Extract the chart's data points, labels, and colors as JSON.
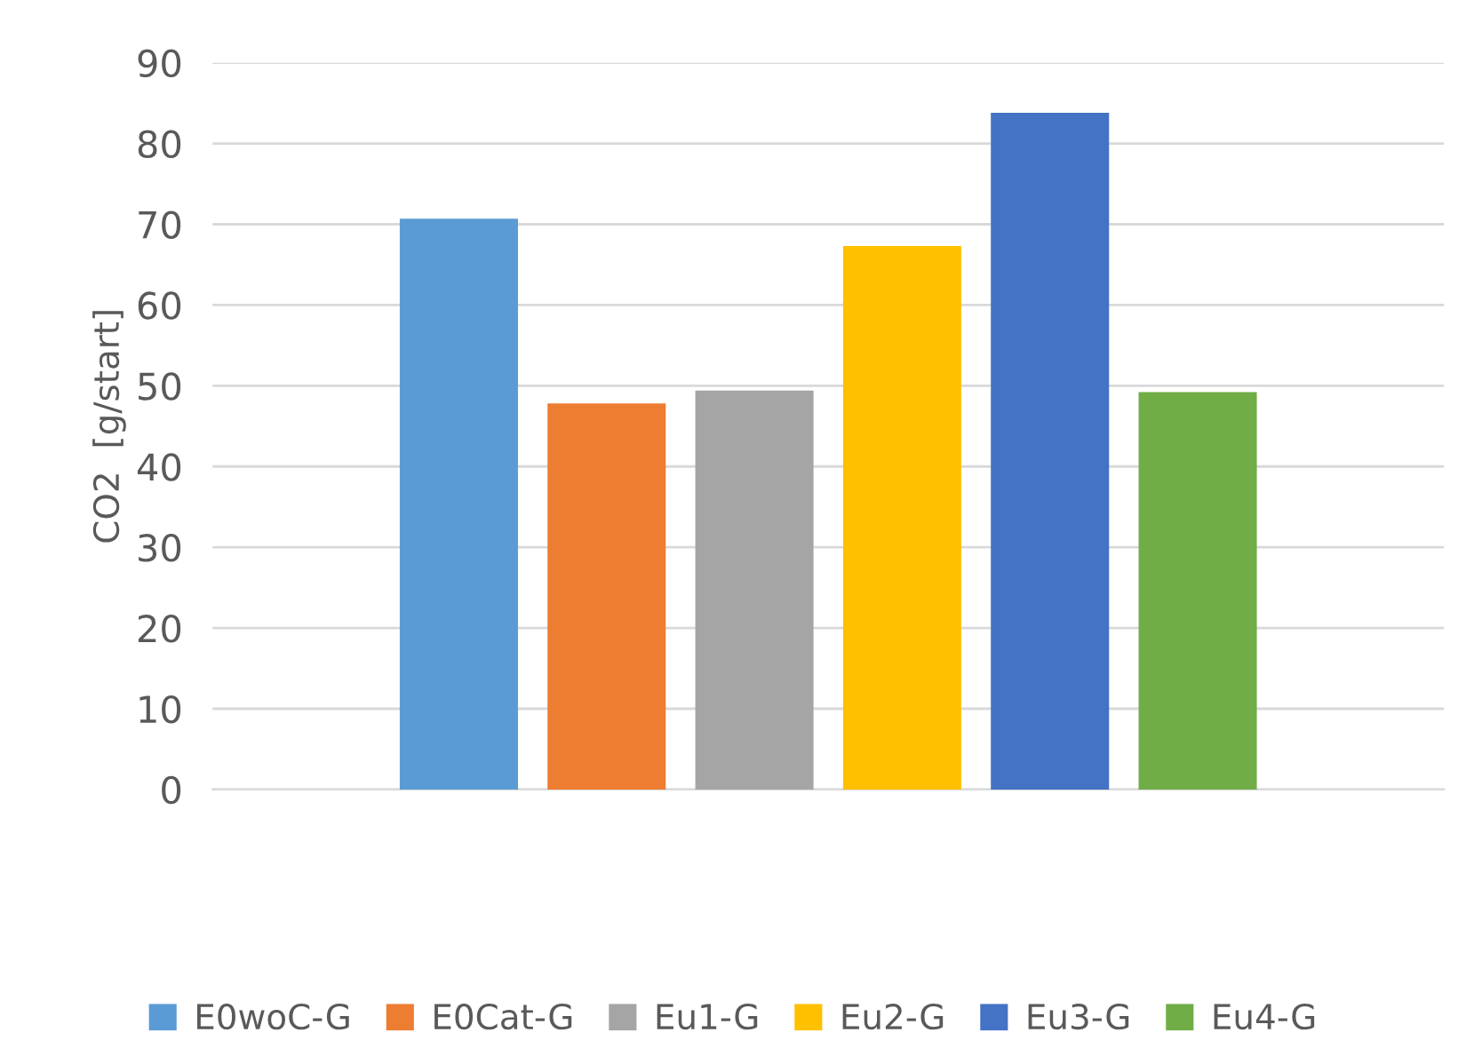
{
  "chart_data": {
    "type": "bar",
    "ylabel": "CO2  [g/start]",
    "categories": [
      null
    ],
    "series": [
      {
        "name": "E0woC-G",
        "color": "#5b9bd5",
        "values": [
          70.7
        ]
      },
      {
        "name": "E0Cat-G",
        "color": "#ed7d31",
        "values": [
          47.8
        ]
      },
      {
        "name": "Eu1-G",
        "color": "#a5a5a5",
        "values": [
          49.4
        ]
      },
      {
        "name": "Eu2-G",
        "color": "#ffc000",
        "values": [
          67.3
        ]
      },
      {
        "name": "Eu3-G",
        "color": "#4472c4",
        "values": [
          83.8
        ]
      },
      {
        "name": "Eu4-G",
        "color": "#70ad47",
        "values": [
          49.2
        ]
      }
    ],
    "ylim": [
      0,
      90
    ],
    "yticks": [
      0,
      10,
      20,
      30,
      40,
      50,
      60,
      70,
      80,
      90
    ],
    "grid": "y",
    "legend": "bottom"
  }
}
